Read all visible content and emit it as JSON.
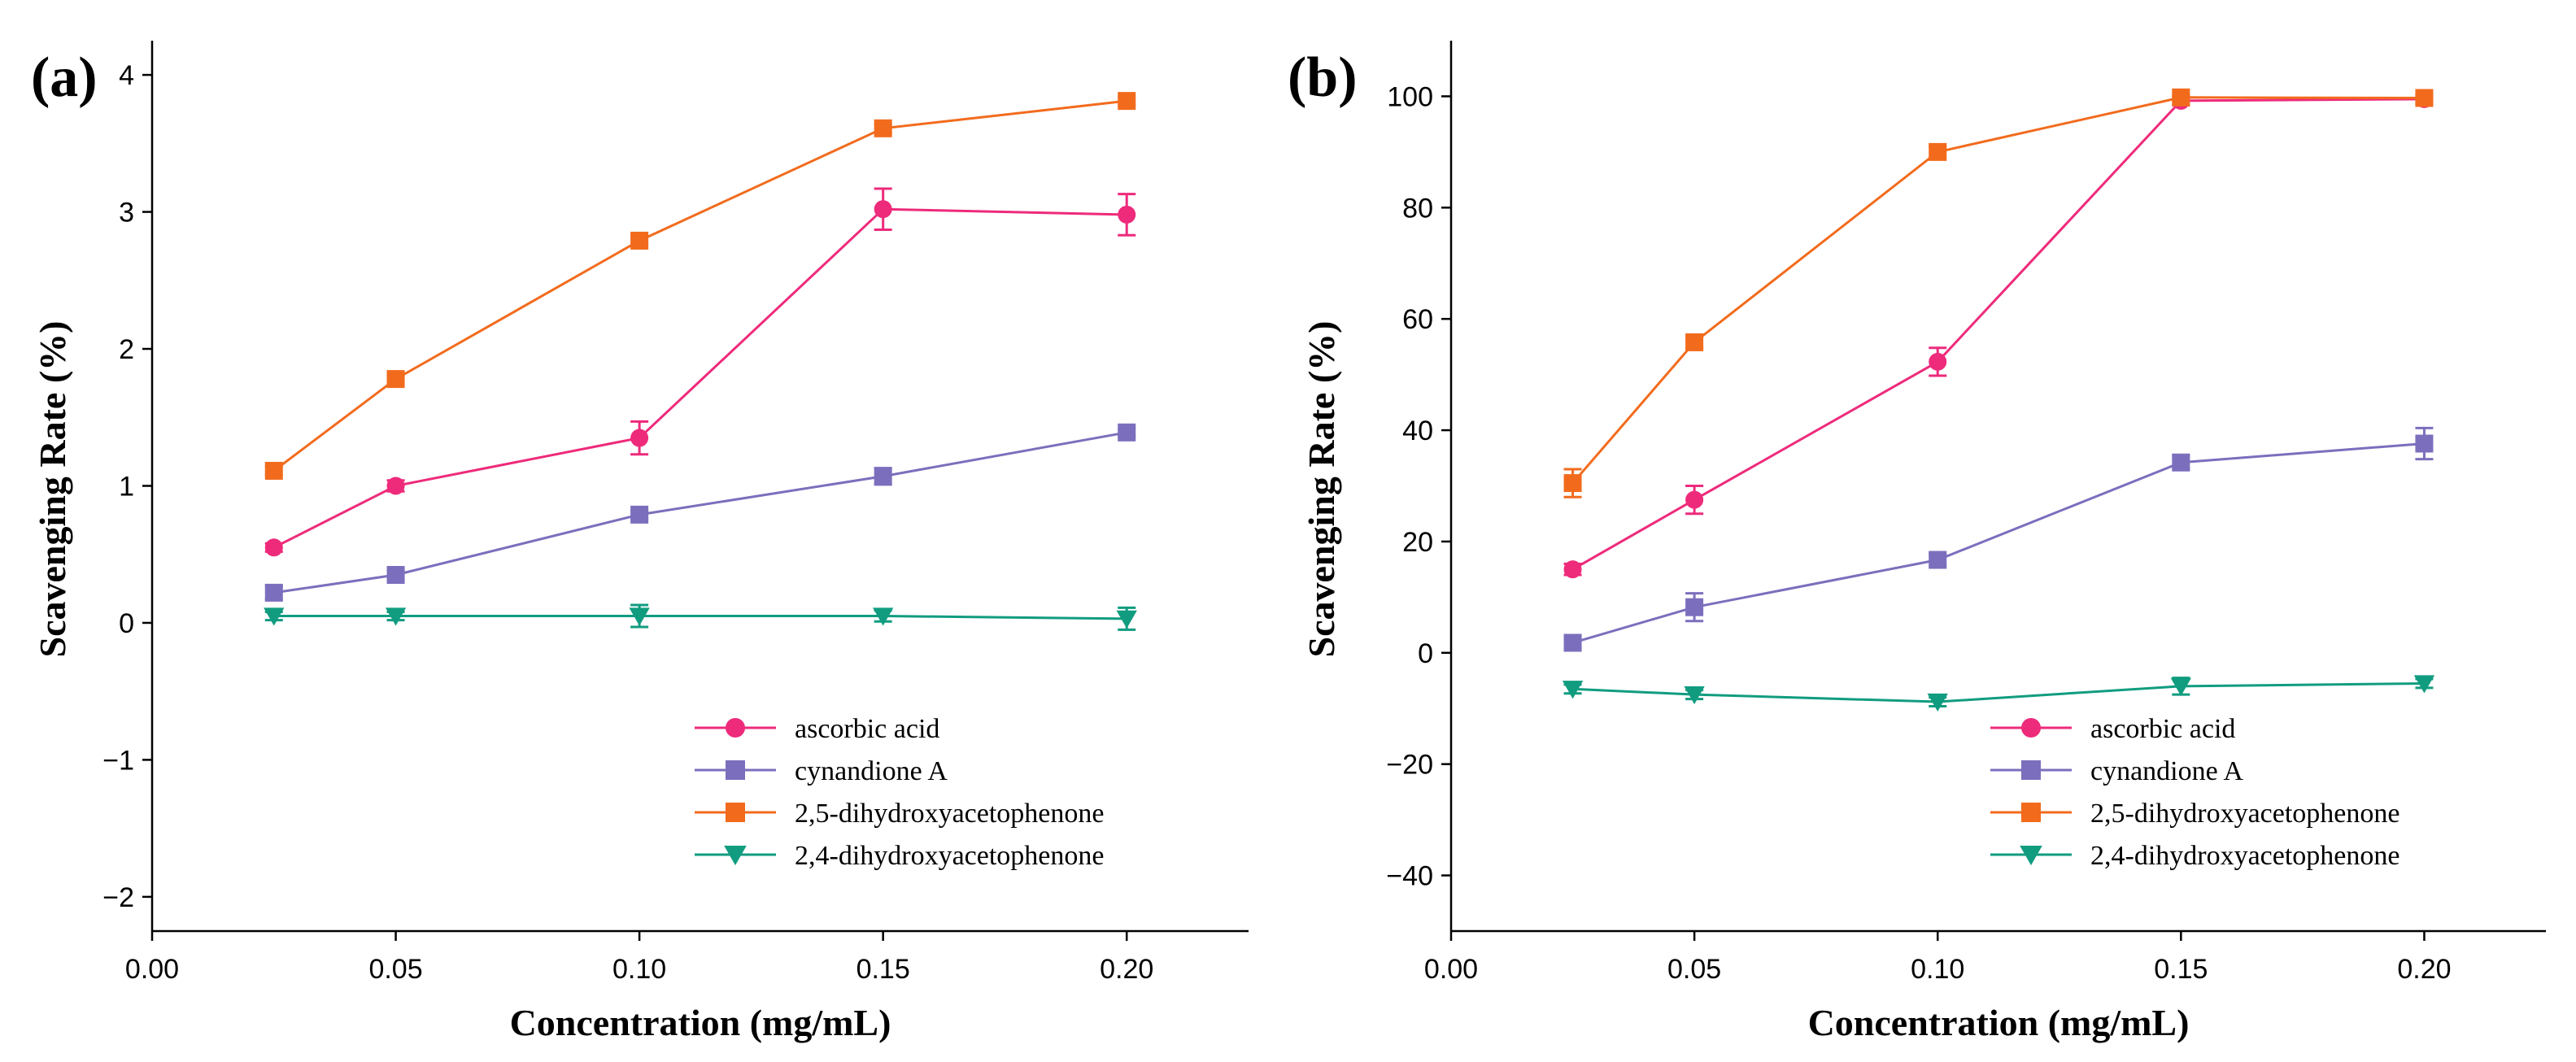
{
  "chart_data": [
    {
      "type": "line",
      "panel_label": "(a)",
      "xlabel": "Concentration (mg/mL)",
      "ylabel": "Scavenging Rate (%)",
      "xlim": [
        0,
        0.225
      ],
      "ylim": [
        -2.25,
        4.25
      ],
      "x_ticks": [
        "0.00",
        "0.05",
        "0.10",
        "0.15",
        "0.20"
      ],
      "y_ticks": [
        "−2",
        "−1",
        "0",
        "1",
        "2",
        "3",
        "4"
      ],
      "x_tick_values": [
        0,
        0.05,
        0.1,
        0.15,
        0.2
      ],
      "y_tick_values": [
        -2,
        -1,
        0,
        1,
        2,
        3,
        4
      ],
      "x": [
        0.025,
        0.05,
        0.1,
        0.15,
        0.2
      ],
      "legend_position": "bottom-right",
      "series": [
        {
          "name": "ascorbic acid",
          "color": "#ee2a7b",
          "marker": "circle",
          "values": [
            0.55,
            1.0,
            1.35,
            3.02,
            2.98
          ],
          "errors": [
            0.03,
            0.04,
            0.12,
            0.15,
            0.15
          ]
        },
        {
          "name": "cynandione A",
          "color": "#7b6fbd",
          "marker": "square",
          "values": [
            0.22,
            0.35,
            0.79,
            1.07,
            1.39
          ],
          "errors": [
            0.05,
            0.03,
            0.03,
            0.06,
            0.03
          ]
        },
        {
          "name": "2,5-dihydroxyacetophenone",
          "color": "#f26b1d",
          "marker": "square",
          "values": [
            1.11,
            1.78,
            2.79,
            3.61,
            3.81
          ],
          "errors": [
            0.03,
            0.03,
            0.03,
            0.03,
            0.03
          ]
        },
        {
          "name": "2,4-dihydroxyacetophenone",
          "color": "#119c80",
          "marker": "triangle-down",
          "values": [
            0.05,
            0.05,
            0.05,
            0.05,
            0.03
          ],
          "errors": [
            0.03,
            0.03,
            0.08,
            0.04,
            0.08
          ]
        }
      ]
    },
    {
      "type": "line",
      "panel_label": "(b)",
      "xlabel": "Concentration (mg/mL)",
      "ylabel": "Scavenging Rate (%)",
      "xlim": [
        0,
        0.225
      ],
      "ylim": [
        -50,
        110
      ],
      "x_ticks": [
        "0.00",
        "0.05",
        "0.10",
        "0.15",
        "0.20"
      ],
      "y_ticks": [
        "−40",
        "−20",
        "0",
        "20",
        "40",
        "60",
        "80",
        "100"
      ],
      "x_tick_values": [
        0,
        0.05,
        0.1,
        0.15,
        0.2
      ],
      "y_tick_values": [
        -40,
        -20,
        0,
        20,
        40,
        60,
        80,
        100
      ],
      "x": [
        0.025,
        0.05,
        0.1,
        0.15,
        0.2
      ],
      "legend_position": "bottom-right",
      "series": [
        {
          "name": "ascorbic acid",
          "color": "#ee2a7b",
          "marker": "circle",
          "values": [
            15.0,
            27.5,
            52.3,
            99.2,
            99.5
          ],
          "errors": [
            1.0,
            2.5,
            2.5,
            0.8,
            0.8
          ]
        },
        {
          "name": "cynandione A",
          "color": "#7b6fbd",
          "marker": "square",
          "values": [
            1.8,
            8.2,
            16.7,
            34.2,
            37.6
          ],
          "errors": [
            1.0,
            2.5,
            1.0,
            1.2,
            2.8
          ]
        },
        {
          "name": "2,5-dihydroxyacetophenone",
          "color": "#f26b1d",
          "marker": "square",
          "values": [
            30.5,
            55.8,
            90.0,
            99.8,
            99.7
          ],
          "errors": [
            2.5,
            1.0,
            1.0,
            0.5,
            0.5
          ]
        },
        {
          "name": "2,4-dihydroxyacetophenone",
          "color": "#119c80",
          "marker": "triangle-down",
          "values": [
            -6.5,
            -7.5,
            -8.8,
            -6.0,
            -5.5
          ],
          "errors": [
            0.8,
            0.8,
            0.8,
            1.5,
            0.8
          ]
        }
      ]
    }
  ]
}
